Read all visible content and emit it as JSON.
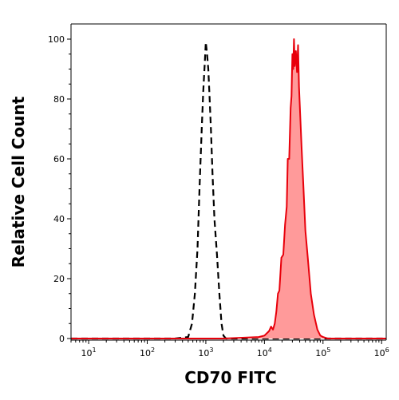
{
  "chart_data": {
    "type": "area",
    "xlabel": "CD70 FITC",
    "ylabel": "Relative Cell Count",
    "x_scale": "log",
    "xlim": [
      5,
      1200000
    ],
    "ylim": [
      0,
      100
    ],
    "grid": false,
    "x_ticks": [
      {
        "value": 10,
        "base": "10",
        "exp": "1"
      },
      {
        "value": 100,
        "base": "10",
        "exp": "2"
      },
      {
        "value": 1000,
        "base": "10",
        "exp": "3"
      },
      {
        "value": 10000,
        "base": "10",
        "exp": "4"
      },
      {
        "value": 100000,
        "base": "10",
        "exp": "5"
      },
      {
        "value": 1000000,
        "base": "10",
        "exp": "6"
      }
    ],
    "y_ticks": [
      0,
      20,
      40,
      60,
      80,
      100
    ],
    "colors": {
      "filled_fill": "#ff9a9a",
      "filled_line": "#e8000b",
      "isotype_line": "#000000"
    },
    "series": [
      {
        "style": "dashed",
        "x": [
          5,
          300,
          500,
          580,
          650,
          720,
          780,
          850,
          900,
          960,
          1000,
          1050,
          1100,
          1150,
          1220,
          1300,
          1400,
          1550,
          1700,
          1850,
          2000,
          2200,
          2500,
          5000,
          1200000
        ],
        "y": [
          0,
          0,
          0.5,
          5,
          15,
          30,
          50,
          70,
          82,
          92,
          99,
          95,
          90,
          82,
          70,
          55,
          40,
          28,
          15,
          5,
          1,
          0,
          0,
          0,
          0
        ]
      },
      {
        "style": "filled",
        "x": [
          5,
          2000,
          8000,
          10000,
          12000,
          13000,
          14000,
          15000,
          16000,
          17000,
          18000,
          19500,
          21000,
          22500,
          24000,
          25000,
          26500,
          28000,
          29000,
          30000,
          31000,
          32000,
          33000,
          34500,
          36000,
          37500,
          39000,
          41000,
          43000,
          46000,
          50000,
          55000,
          62000,
          70000,
          80000,
          90000,
          100000,
          120000,
          150000,
          1200000
        ],
        "y": [
          0,
          0,
          0.5,
          1,
          2.5,
          4,
          3,
          5,
          9,
          15,
          16,
          27,
          28,
          38,
          44,
          60,
          60,
          77,
          81,
          95,
          90,
          100,
          91,
          96,
          89,
          98,
          84,
          74,
          64,
          52,
          36,
          27,
          15,
          8,
          3,
          1,
          0.5,
          0,
          0,
          0
        ]
      }
    ]
  }
}
